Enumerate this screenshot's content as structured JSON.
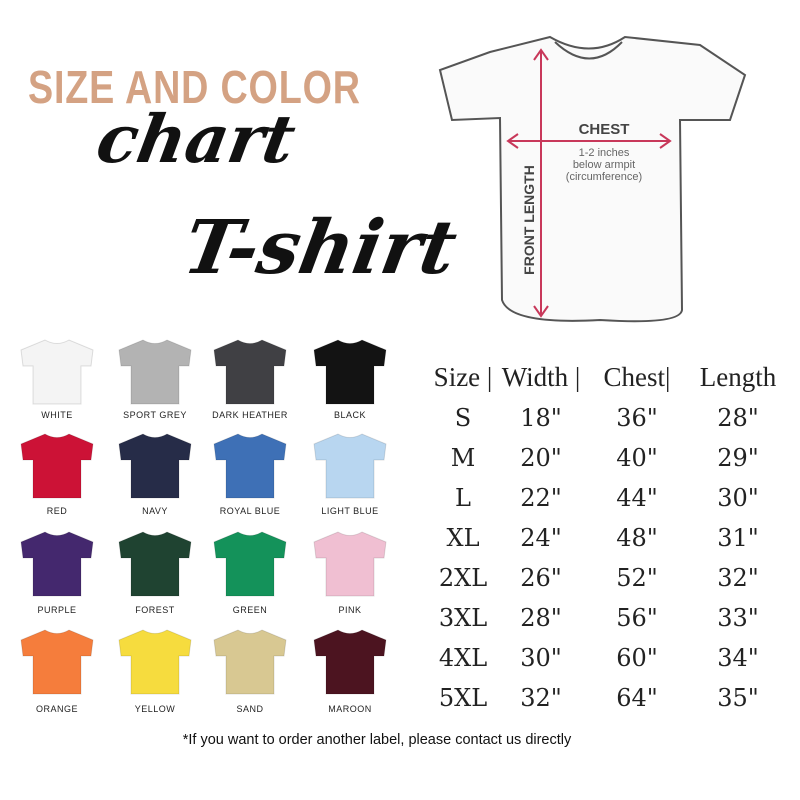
{
  "heading": {
    "line1": "SIZE AND COLOR",
    "line2": "chart",
    "line3": "T-shirt"
  },
  "heading_color": "#d4a283",
  "diagram": {
    "chest_label": "CHEST",
    "chest_note": [
      "1-2 inches",
      "below armpit",
      "(circumference)"
    ],
    "length_label": "FRONT LENGTH",
    "arrow_color": "#c8385a"
  },
  "colors": [
    {
      "name": "WHITE",
      "hex": "#f4f4f4"
    },
    {
      "name": "SPORT GREY",
      "hex": "#b3b3b3"
    },
    {
      "name": "DARK HEATHER",
      "hex": "#404044"
    },
    {
      "name": "BLACK",
      "hex": "#131313"
    },
    {
      "name": "RED",
      "hex": "#cc1236"
    },
    {
      "name": "NAVY",
      "hex": "#262c48"
    },
    {
      "name": "ROYAL BLUE",
      "hex": "#3e70b6"
    },
    {
      "name": "LIGHT BLUE",
      "hex": "#b8d6f0"
    },
    {
      "name": "PURPLE",
      "hex": "#44286e"
    },
    {
      "name": "FOREST",
      "hex": "#1f4331"
    },
    {
      "name": "GREEN",
      "hex": "#14925a"
    },
    {
      "name": "PINK",
      "hex": "#f0bfd2"
    },
    {
      "name": "ORANGE",
      "hex": "#f57d3c"
    },
    {
      "name": "YELLOW",
      "hex": "#f6dc3e"
    },
    {
      "name": "SAND",
      "hex": "#d8c892"
    },
    {
      "name": "MAROON",
      "hex": "#4c1420"
    }
  ],
  "size_table": {
    "headers": [
      "Size |",
      "Width |",
      "Chest|",
      "Length"
    ],
    "rows": [
      [
        "S",
        "18\"",
        "36\"",
        "28\""
      ],
      [
        "M",
        "20\"",
        "40\"",
        "29\""
      ],
      [
        "L",
        "22\"",
        "44\"",
        "30\""
      ],
      [
        "XL",
        "24\"",
        "48\"",
        "31\""
      ],
      [
        "2XL",
        "26\"",
        "52\"",
        "32\""
      ],
      [
        "3XL",
        "28\"",
        "56\"",
        "33\""
      ],
      [
        "4XL",
        "30\"",
        "60\"",
        "34\""
      ],
      [
        "5XL",
        "32\"",
        "64\"",
        "35\""
      ]
    ]
  },
  "footnote": "*If you want to order another label, please contact us directly"
}
